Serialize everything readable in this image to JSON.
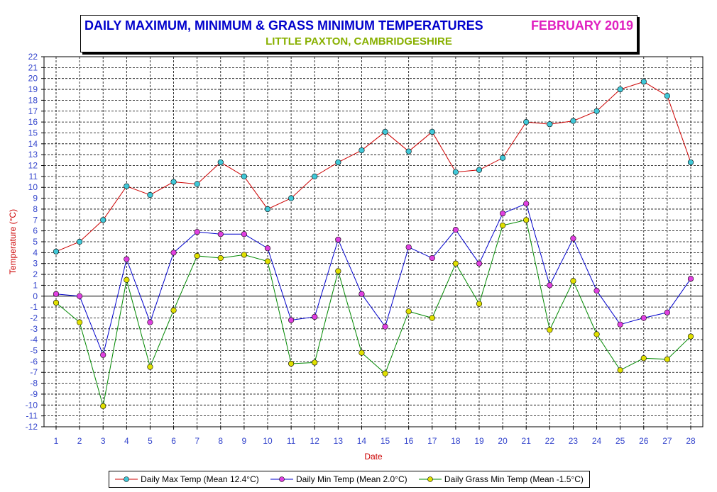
{
  "title": {
    "main": "DAILY MAXIMUM, MINIMUM & GRASS MINIMUM TEMPERATURES",
    "month": "FEBRUARY 2019",
    "subtitle": "LITTLE PAXTON, CAMBRIDGESHIRE"
  },
  "colors": {
    "title_main": "#0000cc",
    "title_month": "#e020c0",
    "subtitle": "#88b000",
    "axis_labels": "#cc0000",
    "tick_labels": "#3344cc"
  },
  "chart_data": {
    "type": "line",
    "xlabel": "Date",
    "ylabel": "Temperature (°C)",
    "ylim": [
      -12,
      22
    ],
    "xlim": [
      1,
      28
    ],
    "grid": true,
    "legend_position": "bottom",
    "x": [
      1,
      2,
      3,
      4,
      5,
      6,
      7,
      8,
      9,
      10,
      11,
      12,
      13,
      14,
      15,
      16,
      17,
      18,
      19,
      20,
      21,
      22,
      23,
      24,
      25,
      26,
      27,
      28
    ],
    "series": [
      {
        "name": "Daily Max Temp (Mean 12.4°C)",
        "line_color": "#cc0000",
        "marker_color": "#40c8d8",
        "values": [
          4.1,
          5.0,
          7.0,
          10.1,
          9.3,
          10.5,
          10.3,
          12.3,
          11.0,
          8.0,
          9.0,
          11.0,
          12.3,
          13.4,
          15.1,
          13.3,
          15.1,
          11.4,
          11.6,
          12.7,
          16.0,
          15.8,
          16.1,
          17.0,
          19.0,
          19.7,
          18.4,
          12.3
        ]
      },
      {
        "name": "Daily Min Temp (Mean 2.0°C)",
        "line_color": "#0000cc",
        "marker_color": "#e040e0",
        "values": [
          0.2,
          0.0,
          -5.4,
          3.4,
          -2.4,
          4.0,
          5.9,
          5.7,
          5.7,
          4.4,
          -2.2,
          -1.9,
          5.2,
          0.2,
          -2.8,
          4.5,
          3.5,
          6.1,
          3.0,
          7.6,
          8.5,
          1.0,
          5.3,
          0.5,
          -2.6,
          -2.0,
          -1.5,
          1.6
        ]
      },
      {
        "name": "Daily Grass Min Temp (Mean -1.5°C)",
        "line_color": "#008800",
        "marker_color": "#e0e000",
        "values": [
          -0.6,
          -2.4,
          -10.1,
          1.5,
          -6.5,
          -1.3,
          3.7,
          3.5,
          3.8,
          3.2,
          -6.2,
          -6.1,
          2.3,
          -5.2,
          -7.1,
          -1.4,
          -2.0,
          3.0,
          -0.7,
          6.5,
          7.0,
          -3.1,
          1.4,
          -3.5,
          -6.8,
          -5.7,
          -5.8,
          -3.7
        ]
      }
    ]
  }
}
